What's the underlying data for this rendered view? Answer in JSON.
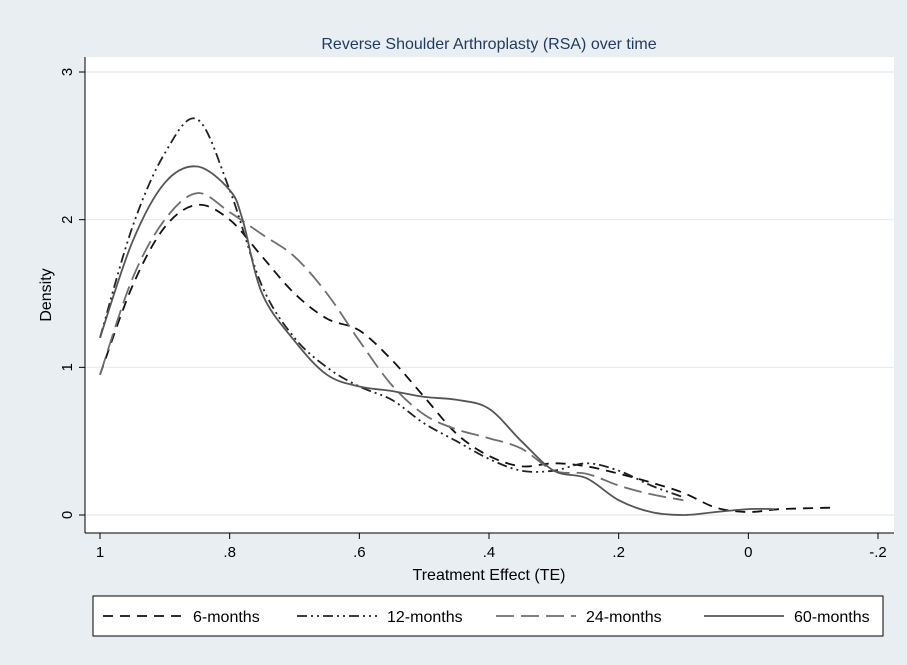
{
  "chart_data": {
    "type": "line",
    "title": "Reverse Shoulder Arthroplasty (RSA) over time",
    "xlabel": "Treatment Effect (TE)",
    "ylabel": "Density",
    "xlim": [
      1.0,
      -0.2
    ],
    "ylim": [
      0,
      3
    ],
    "x_reversed": true,
    "x_ticks": [
      1.0,
      0.8,
      0.6,
      0.4,
      0.2,
      0.0,
      -0.2
    ],
    "x_tick_labels": [
      "1",
      ".8",
      ".6",
      ".4",
      ".2",
      "0",
      "-.2"
    ],
    "y_ticks": [
      0,
      1,
      2,
      3
    ],
    "y_tick_labels": [
      "0",
      "1",
      "2",
      "3"
    ],
    "grid": "horizontal",
    "legend_position": "bottom",
    "background": "#e9eef3",
    "plot_background": "#ffffff",
    "grid_color": "#e3ebf1",
    "series": [
      {
        "name": "6-months",
        "color": "#111111",
        "dash": "10,7",
        "x": [
          1.0,
          0.95,
          0.9,
          0.85,
          0.8,
          0.75,
          0.7,
          0.65,
          0.6,
          0.55,
          0.5,
          0.45,
          0.4,
          0.35,
          0.3,
          0.25,
          0.2,
          0.15,
          0.1,
          0.05,
          0.0,
          -0.05,
          -0.13
        ],
        "y": [
          0.95,
          1.55,
          1.95,
          2.1,
          2.0,
          1.75,
          1.5,
          1.33,
          1.25,
          1.05,
          0.8,
          0.55,
          0.4,
          0.33,
          0.35,
          0.33,
          0.28,
          0.22,
          0.15,
          0.05,
          0.02,
          0.04,
          0.05
        ]
      },
      {
        "name": "12-months",
        "color": "#222222",
        "dash": "10,4,2,4,2,4",
        "x": [
          1.0,
          0.95,
          0.9,
          0.85,
          0.8,
          0.75,
          0.7,
          0.65,
          0.6,
          0.55,
          0.5,
          0.45,
          0.4,
          0.35,
          0.3,
          0.25,
          0.2,
          0.15,
          0.1
        ],
        "y": [
          1.2,
          1.95,
          2.45,
          2.68,
          2.2,
          1.55,
          1.2,
          1.0,
          0.87,
          0.78,
          0.62,
          0.5,
          0.38,
          0.3,
          0.3,
          0.35,
          0.3,
          0.2,
          0.12
        ]
      },
      {
        "name": "24-months",
        "color": "#6e6e6e",
        "dash": "18,7",
        "x": [
          1.0,
          0.95,
          0.9,
          0.85,
          0.8,
          0.75,
          0.7,
          0.65,
          0.6,
          0.55,
          0.5,
          0.45,
          0.4,
          0.35,
          0.3,
          0.25,
          0.2,
          0.15,
          0.1
        ],
        "y": [
          0.95,
          1.6,
          2.0,
          2.18,
          2.05,
          1.9,
          1.75,
          1.5,
          1.18,
          0.88,
          0.68,
          0.58,
          0.52,
          0.45,
          0.3,
          0.28,
          0.2,
          0.14,
          0.1
        ]
      },
      {
        "name": "60-months",
        "color": "#555555",
        "dash": "",
        "x": [
          1.0,
          0.95,
          0.9,
          0.85,
          0.8,
          0.78,
          0.75,
          0.7,
          0.65,
          0.6,
          0.55,
          0.5,
          0.45,
          0.4,
          0.35,
          0.3,
          0.25,
          0.2,
          0.15,
          0.1,
          0.05,
          0.0,
          -0.04
        ],
        "y": [
          1.2,
          1.85,
          2.25,
          2.36,
          2.2,
          2.0,
          1.5,
          1.18,
          0.95,
          0.87,
          0.84,
          0.8,
          0.78,
          0.72,
          0.5,
          0.3,
          0.25,
          0.1,
          0.02,
          0.0,
          0.02,
          0.04,
          0.04
        ]
      }
    ]
  }
}
